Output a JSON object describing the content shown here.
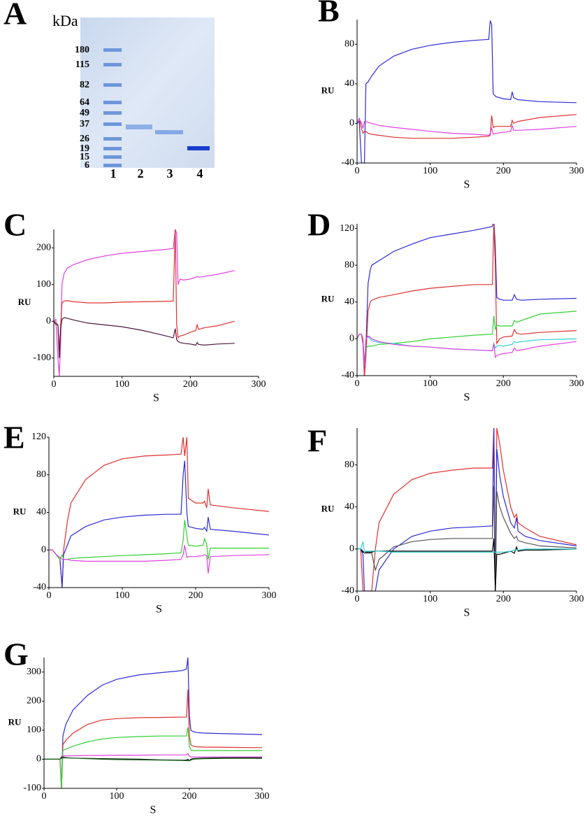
{
  "gel": {
    "panel_label": "A",
    "unit": "kDa",
    "marker_labels": [
      180,
      115,
      82,
      64,
      49,
      37,
      26,
      19,
      15,
      6
    ],
    "lane_labels": [
      "1",
      "2",
      "3",
      "4"
    ]
  },
  "chart_data": [
    {
      "type": "line",
      "panel_label": "B",
      "xlabel": "S",
      "ylabel": "RU",
      "xlim": [
        0,
        300
      ],
      "ylim": [
        -40,
        105
      ],
      "xticks": [
        0,
        100,
        200,
        300
      ],
      "yticks": [
        -40,
        0,
        40,
        80
      ],
      "x": [
        0,
        3,
        6,
        8,
        10,
        12,
        15,
        20,
        30,
        50,
        75,
        100,
        130,
        160,
        180,
        182,
        184,
        186,
        190,
        200,
        210,
        212,
        214,
        220,
        250,
        300
      ],
      "series": [
        {
          "color": "#2b2bd6",
          "values": [
            0,
            2,
            -40,
            -40,
            -40,
            40,
            42,
            48,
            58,
            68,
            75,
            79,
            82,
            84,
            85,
            104,
            100,
            30,
            27,
            25,
            24,
            32,
            26,
            24,
            22,
            21
          ]
        },
        {
          "color": "#e03030",
          "values": [
            0,
            5,
            -5,
            -10,
            -8,
            -8,
            -10,
            -11,
            -12,
            -14,
            -15,
            -15,
            -15,
            -14,
            -13,
            -12,
            8,
            -4,
            -3,
            -3,
            -3,
            3,
            0,
            2,
            6,
            9
          ]
        },
        {
          "color": "#e040e0",
          "values": [
            0,
            5,
            0,
            -5,
            2,
            2,
            1,
            0,
            -2,
            -4,
            -6,
            -8,
            -10,
            -11,
            -12,
            -10,
            -5,
            -11,
            -10,
            -9,
            -8,
            -2,
            -7,
            -7,
            -6,
            -3
          ]
        }
      ]
    },
    {
      "type": "line",
      "panel_label": "C",
      "xlabel": "S",
      "ylabel": "RU",
      "xlim": [
        0,
        300
      ],
      "ylim": [
        -150,
        250
      ],
      "xticks": [
        0,
        100,
        200,
        300
      ],
      "yticks": [
        -100,
        0,
        100,
        200
      ],
      "x": [
        0,
        3,
        6,
        8,
        10,
        12,
        15,
        20,
        30,
        50,
        75,
        100,
        130,
        160,
        175,
        178,
        180,
        182,
        185,
        190,
        200,
        208,
        210,
        212,
        220,
        240,
        265
      ],
      "series": [
        {
          "color": "#e040e0",
          "values": [
            0,
            5,
            -100,
            -150,
            -60,
            100,
            130,
            145,
            155,
            168,
            178,
            185,
            190,
            195,
            198,
            250,
            240,
            100,
            115,
            112,
            115,
            120,
            122,
            120,
            122,
            128,
            138
          ]
        },
        {
          "color": "#e03030",
          "values": [
            0,
            -10,
            -10,
            -80,
            -10,
            50,
            55,
            56,
            53,
            50,
            50,
            52,
            53,
            54,
            55,
            250,
            -10,
            -45,
            -40,
            -38,
            -30,
            -25,
            -10,
            -22,
            -18,
            -12,
            0
          ]
        },
        {
          "color": "#4b1a40",
          "values": [
            0,
            -5,
            -10,
            -100,
            -20,
            5,
            10,
            8,
            3,
            -5,
            -10,
            -15,
            -25,
            -38,
            -45,
            -20,
            -50,
            -55,
            -58,
            -60,
            -62,
            -65,
            -58,
            -63,
            -65,
            -62,
            -60
          ]
        }
      ]
    },
    {
      "type": "line",
      "panel_label": "D",
      "xlabel": "S",
      "ylabel": "RU",
      "xlim": [
        0,
        300
      ],
      "ylim": [
        -40,
        125
      ],
      "xticks": [
        0,
        100,
        200,
        300
      ],
      "yticks": [
        -40,
        0,
        40,
        80,
        120
      ],
      "x": [
        0,
        3,
        6,
        8,
        10,
        12,
        15,
        18,
        20,
        30,
        50,
        75,
        100,
        130,
        160,
        185,
        187,
        189,
        191,
        195,
        200,
        212,
        215,
        218,
        225,
        250,
        300
      ],
      "series": [
        {
          "color": "#2b2bd6",
          "values": [
            0,
            5,
            5,
            -5,
            -40,
            -10,
            60,
            75,
            80,
            85,
            95,
            103,
            110,
            114,
            118,
            122,
            130,
            100,
            45,
            43,
            42,
            42,
            48,
            43,
            42,
            43,
            44
          ]
        },
        {
          "color": "#e03030",
          "values": [
            0,
            5,
            5,
            -5,
            -40,
            -20,
            30,
            40,
            42,
            45,
            48,
            52,
            55,
            57,
            59,
            59,
            125,
            80,
            -5,
            0,
            2,
            3,
            10,
            6,
            5,
            7,
            9
          ]
        },
        {
          "color": "#30d030",
          "values": [
            0,
            5,
            5,
            0,
            -30,
            -10,
            -8,
            -8,
            -8,
            -6,
            -5,
            -3,
            0,
            2,
            4,
            5,
            25,
            10,
            15,
            14,
            14,
            14,
            20,
            18,
            20,
            27,
            30
          ]
        },
        {
          "color": "#30d0d0",
          "values": [
            0,
            5,
            5,
            0,
            -30,
            0,
            2,
            0,
            -2,
            -4,
            -5,
            -8,
            -9,
            -11,
            -12,
            -13,
            -5,
            -10,
            -8,
            -7,
            -8,
            -6,
            -3,
            -4,
            -3,
            -1,
            0
          ]
        },
        {
          "color": "#e040e0",
          "values": [
            0,
            5,
            5,
            0,
            -30,
            0,
            3,
            2,
            0,
            -3,
            -6,
            -8,
            -9,
            -11,
            -12,
            -13,
            -5,
            -20,
            -18,
            -17,
            -16,
            -15,
            -10,
            -13,
            -12,
            -8,
            -3
          ]
        }
      ]
    },
    {
      "type": "line",
      "panel_label": "E",
      "xlabel": "S",
      "ylabel": "RU",
      "xlim": [
        0,
        300
      ],
      "ylim": [
        -40,
        120
      ],
      "xticks": [
        0,
        100,
        200,
        300
      ],
      "yticks": [
        -40,
        0,
        40,
        80,
        120
      ],
      "x": [
        0,
        5,
        10,
        15,
        18,
        20,
        25,
        30,
        50,
        75,
        100,
        130,
        160,
        180,
        183,
        185,
        188,
        190,
        200,
        210,
        212,
        215,
        217,
        220,
        250,
        300
      ],
      "series": [
        {
          "color": "#e03030",
          "values": [
            0,
            0,
            -5,
            -10,
            -40,
            0,
            30,
            50,
            75,
            90,
            97,
            100,
            101,
            102,
            120,
            100,
            120,
            55,
            50,
            50,
            52,
            45,
            65,
            48,
            45,
            41
          ]
        },
        {
          "color": "#2b2bd6",
          "values": [
            0,
            0,
            -5,
            -10,
            -40,
            -5,
            5,
            15,
            25,
            32,
            35,
            37,
            38,
            38,
            80,
            95,
            40,
            25,
            23,
            22,
            24,
            20,
            35,
            22,
            20,
            16
          ]
        },
        {
          "color": "#30d030",
          "values": [
            0,
            0,
            -5,
            -10,
            -5,
            -10,
            -10,
            -9,
            -8,
            -7,
            -6,
            -5,
            -4,
            -3,
            10,
            32,
            15,
            5,
            4,
            5,
            12,
            6,
            -10,
            2,
            2,
            2
          ]
        },
        {
          "color": "#e040e0",
          "values": [
            0,
            0,
            -5,
            -8,
            -10,
            -10,
            -10,
            -11,
            -12,
            -12,
            -12,
            -12,
            -11,
            -10,
            -5,
            5,
            -8,
            -7,
            -7,
            -6,
            -5,
            -6,
            -25,
            -7,
            -6,
            -5
          ]
        }
      ]
    },
    {
      "type": "line",
      "panel_label": "F",
      "xlabel": "S",
      "ylabel": "RU",
      "xlim": [
        0,
        300
      ],
      "ylim": [
        -40,
        115
      ],
      "xticks": [
        0,
        100,
        200,
        300
      ],
      "yticks": [
        -40,
        0,
        40,
        80
      ],
      "x": [
        0,
        5,
        8,
        10,
        12,
        15,
        20,
        25,
        30,
        50,
        75,
        100,
        130,
        160,
        185,
        187,
        189,
        191,
        195,
        200,
        210,
        215,
        218,
        220,
        230,
        250,
        300
      ],
      "series": [
        {
          "color": "#e03030",
          "values": [
            0,
            0,
            -40,
            -40,
            -40,
            -40,
            -40,
            0,
            25,
            52,
            66,
            72,
            75,
            77,
            77,
            115,
            -40,
            115,
            100,
            75,
            40,
            30,
            33,
            25,
            20,
            12,
            4
          ]
        },
        {
          "color": "#2b2bd6",
          "values": [
            0,
            0,
            -5,
            -40,
            -40,
            -40,
            -40,
            -40,
            -20,
            0,
            12,
            17,
            20,
            21,
            22,
            115,
            -40,
            95,
            70,
            50,
            25,
            20,
            30,
            17,
            12,
            8,
            3
          ]
        },
        {
          "color": "#555555",
          "values": [
            0,
            0,
            -2,
            -4,
            -4,
            -4,
            -4,
            -20,
            -10,
            2,
            7,
            9,
            10,
            10,
            10,
            60,
            -40,
            55,
            40,
            30,
            15,
            10,
            12,
            8,
            6,
            3,
            1
          ]
        },
        {
          "color": "#000000",
          "values": [
            0,
            0,
            -3,
            -3,
            -3,
            -3,
            -3,
            -2,
            -2,
            -2,
            -2,
            -2,
            -2,
            -2,
            -2,
            10,
            -40,
            -5,
            -5,
            -4,
            -2,
            -4,
            2,
            -2,
            -1,
            -1,
            0
          ]
        },
        {
          "color": "#30d0d0",
          "values": [
            0,
            0,
            7,
            -3,
            -2,
            -2,
            -2,
            -2,
            -2,
            -3,
            -3,
            -3,
            -3,
            -3,
            -3,
            -3,
            -3,
            -3,
            -3,
            -3,
            -2,
            -1,
            -1,
            -1,
            0,
            0,
            0
          ]
        }
      ]
    },
    {
      "type": "line",
      "panel_label": "G",
      "xlabel": "S",
      "ylabel": "RU",
      "xlim": [
        0,
        300
      ],
      "ylim": [
        -100,
        350
      ],
      "xticks": [
        0,
        100,
        200,
        300
      ],
      "yticks": [
        -100,
        0,
        100,
        200,
        300
      ],
      "x": [
        0,
        10,
        20,
        22,
        24,
        26,
        30,
        40,
        60,
        80,
        100,
        130,
        160,
        190,
        196,
        198,
        200,
        202,
        205,
        210,
        220,
        250,
        300
      ],
      "series": [
        {
          "color": "#2b2bd6",
          "values": [
            0,
            0,
            0,
            0,
            -100,
            80,
            120,
            170,
            220,
            255,
            275,
            290,
            298,
            305,
            310,
            350,
            150,
            100,
            95,
            92,
            90,
            88,
            85
          ]
        },
        {
          "color": "#e03030",
          "values": [
            0,
            0,
            0,
            0,
            -100,
            50,
            65,
            90,
            120,
            135,
            140,
            143,
            144,
            145,
            145,
            240,
            80,
            50,
            45,
            43,
            42,
            41,
            40
          ]
        },
        {
          "color": "#30d030",
          "values": [
            0,
            0,
            0,
            0,
            -100,
            30,
            35,
            45,
            60,
            70,
            75,
            78,
            80,
            80,
            80,
            110,
            45,
            32,
            30,
            30,
            30,
            30,
            30
          ]
        },
        {
          "color": "#e040e0",
          "values": [
            0,
            0,
            0,
            0,
            10,
            12,
            12,
            12,
            13,
            13,
            14,
            14,
            15,
            15,
            15,
            20,
            10,
            8,
            8,
            8,
            8,
            8,
            8
          ]
        },
        {
          "color": "#000000",
          "values": [
            0,
            0,
            0,
            0,
            5,
            6,
            5,
            4,
            3,
            2,
            1,
            0,
            -2,
            -3,
            -3,
            0,
            -5,
            0,
            2,
            3,
            4,
            5,
            5
          ]
        },
        {
          "color": "#1a6a1a",
          "values": [
            0,
            0,
            0,
            0,
            8,
            8,
            6,
            4,
            2,
            0,
            -1,
            -2,
            -3,
            -4,
            -5,
            -5,
            -5,
            -3,
            0,
            1,
            2,
            3,
            3
          ]
        }
      ]
    }
  ]
}
